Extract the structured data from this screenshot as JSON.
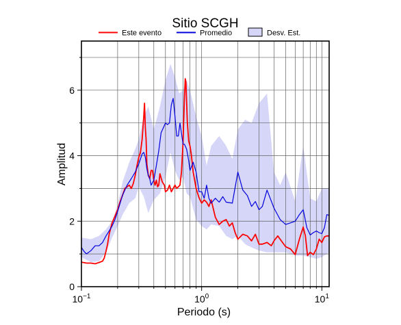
{
  "chart_data": {
    "type": "line",
    "title": "Sitio SCGH",
    "xlabel": "Periodo (s)",
    "ylabel": "Amplitud",
    "x_scale": "log",
    "xlim": [
      0.1,
      11.5
    ],
    "ylim": [
      0,
      7.5
    ],
    "x_ticks": [
      0.1,
      1,
      10
    ],
    "x_tick_labels": [
      {
        "base": "10",
        "exp": "−1"
      },
      {
        "base": "10",
        "exp": "0"
      },
      {
        "base": "10",
        "exp": "1"
      }
    ],
    "y_ticks": [
      0,
      2,
      4,
      6
    ],
    "y_tick_labels": [
      "0",
      "2",
      "4",
      "6"
    ],
    "grid": true,
    "legend": {
      "position": "top",
      "entries": [
        {
          "label": "Este evento",
          "color": "#ff0000",
          "kind": "line"
        },
        {
          "label": "Promedio",
          "color": "#0000dd",
          "kind": "line"
        },
        {
          "label": "Desv. Est.",
          "color": "#d6d6f8",
          "kind": "patch"
        }
      ]
    },
    "series": [
      {
        "name": "Este evento",
        "color": "#ff0000",
        "x": [
          0.1,
          0.11,
          0.12,
          0.13,
          0.14,
          0.15,
          0.155,
          0.16,
          0.165,
          0.17,
          0.18,
          0.19,
          0.2,
          0.21,
          0.22,
          0.23,
          0.24,
          0.25,
          0.26,
          0.27,
          0.28,
          0.29,
          0.3,
          0.31,
          0.32,
          0.33,
          0.335,
          0.34,
          0.345,
          0.35,
          0.36,
          0.37,
          0.38,
          0.39,
          0.4,
          0.41,
          0.42,
          0.43,
          0.44,
          0.45,
          0.47,
          0.49,
          0.5,
          0.52,
          0.54,
          0.56,
          0.58,
          0.6,
          0.62,
          0.64,
          0.66,
          0.68,
          0.7,
          0.71,
          0.72,
          0.73,
          0.74,
          0.75,
          0.76,
          0.78,
          0.8,
          0.82,
          0.85,
          0.88,
          0.9,
          0.95,
          1.0,
          1.05,
          1.1,
          1.15,
          1.2,
          1.3,
          1.4,
          1.5,
          1.6,
          1.7,
          1.8,
          1.9,
          2.0,
          2.2,
          2.4,
          2.6,
          2.8,
          3.0,
          3.2,
          3.5,
          3.8,
          4.0,
          4.3,
          4.6,
          5.0,
          5.5,
          6.0,
          6.5,
          7.0,
          7.3,
          7.6,
          8.0,
          8.5,
          9.0,
          9.5,
          10.0,
          10.5,
          11.0,
          11.5
        ],
        "y": [
          0.75,
          0.72,
          0.72,
          0.7,
          0.74,
          0.78,
          0.88,
          1.08,
          1.3,
          1.6,
          1.95,
          2.15,
          2.35,
          2.6,
          2.8,
          3.0,
          3.05,
          3.1,
          3.0,
          3.15,
          3.4,
          3.7,
          3.95,
          4.1,
          4.5,
          5.2,
          5.6,
          4.85,
          4.5,
          3.75,
          3.4,
          3.3,
          3.55,
          3.55,
          3.25,
          3.1,
          3.25,
          3.05,
          3.1,
          3.45,
          3.2,
          3.1,
          2.9,
          2.95,
          3.1,
          2.9,
          3.0,
          3.1,
          3.0,
          3.05,
          3.1,
          3.5,
          4.4,
          5.1,
          5.8,
          6.35,
          6.25,
          5.65,
          5.05,
          4.45,
          4.3,
          4.05,
          3.5,
          3.2,
          3.0,
          2.72,
          2.55,
          2.65,
          2.58,
          2.45,
          2.65,
          2.12,
          1.9,
          2.0,
          2.05,
          1.85,
          1.95,
          1.65,
          1.45,
          1.6,
          1.55,
          1.4,
          1.6,
          1.3,
          1.3,
          1.35,
          1.25,
          1.4,
          1.55,
          1.4,
          1.22,
          1.15,
          0.98,
          1.45,
          1.82,
          1.55,
          0.95,
          1.05,
          0.98,
          1.15,
          1.45,
          1.35,
          1.52,
          1.55,
          1.55
        ]
      },
      {
        "name": "Promedio",
        "color": "#0000dd",
        "x": [
          0.1,
          0.105,
          0.11,
          0.12,
          0.13,
          0.14,
          0.15,
          0.16,
          0.17,
          0.18,
          0.19,
          0.2,
          0.22,
          0.24,
          0.26,
          0.28,
          0.3,
          0.32,
          0.33,
          0.34,
          0.35,
          0.36,
          0.37,
          0.38,
          0.4,
          0.42,
          0.44,
          0.46,
          0.48,
          0.5,
          0.52,
          0.54,
          0.55,
          0.56,
          0.58,
          0.6,
          0.62,
          0.64,
          0.66,
          0.7,
          0.72,
          0.75,
          0.78,
          0.8,
          0.85,
          0.9,
          0.95,
          1.0,
          1.05,
          1.1,
          1.15,
          1.2,
          1.3,
          1.4,
          1.5,
          1.6,
          1.8,
          2.0,
          2.2,
          2.4,
          2.6,
          2.8,
          3.0,
          3.2,
          3.5,
          4.0,
          4.5,
          5.0,
          5.5,
          6.0,
          6.5,
          7.0,
          7.5,
          8.0,
          8.5,
          9.0,
          9.5,
          10.0,
          10.5,
          11.0,
          11.5
        ],
        "y": [
          1.2,
          1.08,
          1.0,
          1.1,
          1.25,
          1.25,
          1.35,
          1.55,
          1.7,
          1.85,
          2.05,
          2.3,
          2.8,
          3.1,
          3.3,
          3.5,
          3.75,
          4.05,
          4.1,
          3.95,
          3.6,
          3.4,
          3.3,
          3.1,
          3.25,
          3.7,
          4.15,
          4.7,
          4.85,
          5.0,
          4.95,
          5.0,
          5.3,
          5.55,
          5.75,
          5.2,
          4.6,
          4.6,
          5.0,
          4.35,
          4.35,
          4.2,
          3.85,
          3.55,
          3.8,
          3.5,
          2.9,
          2.9,
          2.7,
          3.1,
          2.7,
          2.55,
          2.7,
          2.58,
          2.75,
          2.58,
          2.55,
          3.5,
          2.95,
          2.78,
          2.45,
          2.6,
          2.35,
          2.45,
          2.95,
          2.4,
          2.05,
          1.9,
          1.95,
          2.0,
          2.2,
          2.35,
          1.8,
          1.58,
          1.65,
          1.7,
          1.65,
          1.62,
          1.8,
          2.2,
          2.18
        ]
      }
    ],
    "band": {
      "name": "Desv. Est.",
      "color": "#d6d6f8",
      "x": [
        0.1,
        0.12,
        0.14,
        0.16,
        0.18,
        0.2,
        0.22,
        0.25,
        0.28,
        0.3,
        0.33,
        0.36,
        0.4,
        0.45,
        0.5,
        0.55,
        0.6,
        0.65,
        0.7,
        0.75,
        0.8,
        0.9,
        1.0,
        1.1,
        1.2,
        1.4,
        1.6,
        1.8,
        2.0,
        2.3,
        2.6,
        3.0,
        3.5,
        4.0,
        4.5,
        5.0,
        6.0,
        7.0,
        8.0,
        9.0,
        10.0,
        11.5
      ],
      "upper": [
        1.5,
        1.45,
        1.55,
        1.75,
        2.0,
        2.5,
        3.2,
        3.8,
        4.2,
        4.5,
        5.2,
        5.5,
        4.8,
        5.5,
        6.3,
        6.8,
        6.4,
        5.9,
        6.0,
        6.3,
        6.0,
        5.2,
        4.6,
        3.7,
        4.3,
        4.6,
        4.3,
        3.9,
        4.8,
        5.1,
        5.0,
        5.6,
        5.9,
        3.5,
        3.1,
        3.5,
        2.6,
        4.3,
        2.7,
        2.6,
        3.0,
        3.0
      ],
      "lower": [
        0.9,
        0.75,
        0.78,
        1.05,
        1.5,
        1.85,
        2.2,
        2.55,
        2.7,
        3.05,
        2.75,
        2.25,
        2.65,
        2.85,
        3.35,
        4.1,
        3.55,
        3.25,
        3.35,
        2.85,
        2.75,
        2.05,
        1.85,
        1.75,
        1.9,
        1.85,
        1.55,
        1.45,
        1.55,
        1.3,
        1.2,
        1.1,
        1.05,
        1.05,
        1.05,
        1.05,
        0.95,
        0.95,
        0.9,
        0.85,
        0.9,
        1.05
      ]
    }
  }
}
